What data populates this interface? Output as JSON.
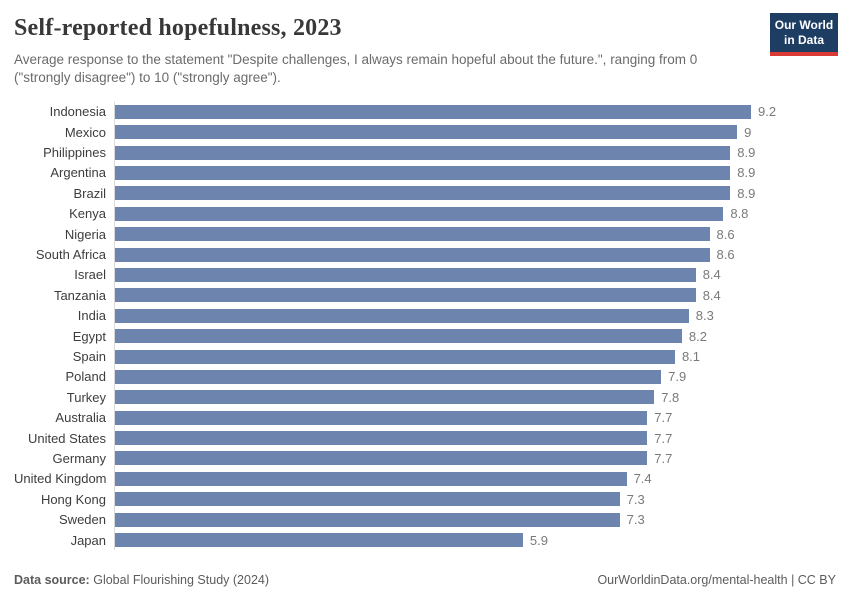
{
  "header": {
    "title": "Self-reported hopefulness, 2023",
    "subtitle": "Average response to the statement \"Despite challenges, I always remain hopeful about the future.\", ranging from 0 (\"strongly disagree\") to 10 (\"strongly agree\").",
    "logo": {
      "line1": "Our World",
      "line2": "in Data"
    }
  },
  "chart_data": {
    "type": "bar",
    "orientation": "horizontal",
    "title": "Self-reported hopefulness, 2023",
    "xlabel": "",
    "ylabel": "",
    "xlim": [
      0,
      9.2
    ],
    "grid": false,
    "legend": false,
    "bar_color": "#6d84ae",
    "categories": [
      "Indonesia",
      "Mexico",
      "Philippines",
      "Argentina",
      "Brazil",
      "Kenya",
      "Nigeria",
      "South Africa",
      "Israel",
      "Tanzania",
      "India",
      "Egypt",
      "Spain",
      "Poland",
      "Turkey",
      "Australia",
      "United States",
      "Germany",
      "United Kingdom",
      "Hong Kong",
      "Sweden",
      "Japan"
    ],
    "values": [
      9.2,
      9,
      8.9,
      8.9,
      8.9,
      8.8,
      8.6,
      8.6,
      8.4,
      8.4,
      8.3,
      8.2,
      8.1,
      7.9,
      7.8,
      7.7,
      7.7,
      7.7,
      7.4,
      7.3,
      7.3,
      5.9
    ],
    "value_labels": [
      "9.2",
      "9",
      "8.9",
      "8.9",
      "8.9",
      "8.8",
      "8.6",
      "8.6",
      "8.4",
      "8.4",
      "8.3",
      "8.2",
      "8.1",
      "7.9",
      "7.8",
      "7.7",
      "7.7",
      "7.7",
      "7.4",
      "7.3",
      "7.3",
      "5.9"
    ]
  },
  "footer": {
    "source_label": "Data source:",
    "source_text": "Global Flourishing Study (2024)",
    "credit": "OurWorldinData.org/mental-health | CC BY"
  },
  "colors": {
    "bar": "#6d84ae",
    "axis_line": "#d9d9d9",
    "title_text": "#383838",
    "subtitle_text": "#6b6b6b",
    "value_text": "#7a7a7a",
    "logo_navy": "#1d3d63",
    "logo_red": "#d93a34"
  }
}
